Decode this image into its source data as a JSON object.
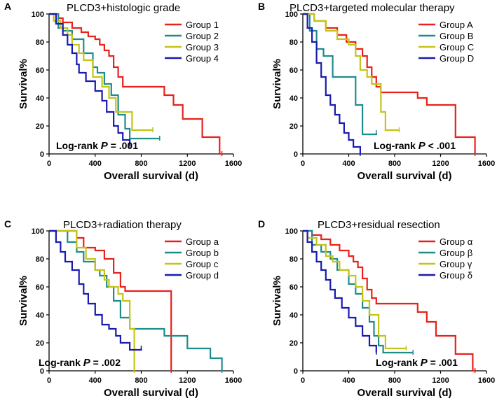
{
  "chart_data": [
    {
      "panel_label": "A",
      "type": "line",
      "title": "PLCD3+histologic grade",
      "xlabel": "Overall survival (d)",
      "ylabel": "Survival%",
      "xlim": [
        0,
        1600
      ],
      "ylim": [
        0,
        100
      ],
      "xticks": [
        0,
        400,
        800,
        1200,
        1600
      ],
      "yticks": [
        0,
        20,
        40,
        60,
        80,
        100
      ],
      "pvalue": {
        "prefix": "Log-rank ",
        "p": "P",
        "rest": " = .001"
      },
      "legend_position": "top-right",
      "series": [
        {
          "name": "Group 1",
          "color": "#e8211c",
          "x": [
            0,
            80,
            120,
            200,
            280,
            340,
            400,
            440,
            480,
            520,
            560,
            600,
            640,
            1000,
            1080,
            1160,
            1330,
            1480,
            1500
          ],
          "y": [
            100,
            97,
            94,
            90,
            87,
            84,
            82,
            78,
            74,
            70,
            62,
            55,
            48,
            42,
            35,
            25,
            12,
            0,
            0
          ]
        },
        {
          "name": "Group 2",
          "color": "#1f8c8c",
          "x": [
            0,
            80,
            120,
            200,
            300,
            380,
            420,
            480,
            540,
            600,
            660,
            700,
            960
          ],
          "y": [
            100,
            90,
            88,
            82,
            72,
            62,
            58,
            50,
            42,
            28,
            18,
            11,
            11
          ]
        },
        {
          "name": "Group 3",
          "color": "#c4c418",
          "x": [
            0,
            40,
            100,
            160,
            200,
            260,
            300,
            380,
            460,
            520,
            580,
            720,
            900
          ],
          "y": [
            100,
            95,
            90,
            85,
            78,
            72,
            67,
            55,
            48,
            40,
            30,
            17,
            17
          ]
        },
        {
          "name": "Group 4",
          "color": "#1a1ab0",
          "x": [
            0,
            60,
            120,
            160,
            200,
            240,
            260,
            320,
            400,
            460,
            500,
            560,
            600,
            640,
            700
          ],
          "y": [
            100,
            93,
            85,
            78,
            72,
            64,
            58,
            52,
            45,
            38,
            30,
            20,
            15,
            10,
            6
          ]
        }
      ]
    },
    {
      "panel_label": "B",
      "type": "line",
      "title": "PLCD3+targeted molecular therapy",
      "xlabel": "Overall survival (d)",
      "ylabel": "Survival%",
      "xlim": [
        0,
        1600
      ],
      "ylim": [
        0,
        100
      ],
      "xticks": [
        0,
        400,
        800,
        1200,
        1600
      ],
      "yticks": [
        0,
        20,
        40,
        60,
        80,
        100
      ],
      "pvalue": {
        "prefix": "Log-rank ",
        "p": "P",
        "rest": " < .001"
      },
      "legend_position": "top-right",
      "series": [
        {
          "name": "Group A",
          "color": "#e8211c",
          "x": [
            0,
            100,
            200,
            300,
            380,
            460,
            520,
            560,
            600,
            640,
            680,
            1000,
            1080,
            1330,
            1480,
            1500
          ],
          "y": [
            100,
            95,
            90,
            85,
            80,
            75,
            70,
            62,
            55,
            48,
            44,
            40,
            35,
            12,
            12,
            0
          ]
        },
        {
          "name": "Group B",
          "color": "#1f8c8c",
          "x": [
            0,
            60,
            120,
            180,
            260,
            460,
            520,
            560,
            640
          ],
          "y": [
            100,
            88,
            75,
            70,
            55,
            35,
            14,
            14,
            15
          ]
        },
        {
          "name": "Group C",
          "color": "#c4c418",
          "x": [
            0,
            100,
            200,
            300,
            400,
            460,
            500,
            560,
            600,
            680,
            720,
            840
          ],
          "y": [
            100,
            95,
            88,
            82,
            78,
            70,
            60,
            55,
            50,
            30,
            17,
            17
          ]
        },
        {
          "name": "Group D",
          "color": "#1a1ab0",
          "x": [
            0,
            40,
            80,
            120,
            160,
            200,
            240,
            280,
            320,
            360,
            400,
            440,
            500
          ],
          "y": [
            100,
            90,
            80,
            65,
            55,
            42,
            35,
            28,
            22,
            15,
            10,
            5,
            0
          ]
        }
      ]
    },
    {
      "panel_label": "C",
      "type": "line",
      "title": "PLCD3+radiation therapy",
      "xlabel": "Overall survival (d)",
      "ylabel": "Survival%",
      "xlim": [
        0,
        1600
      ],
      "ylim": [
        0,
        100
      ],
      "xticks": [
        0,
        400,
        800,
        1200,
        1600
      ],
      "yticks": [
        0,
        20,
        40,
        60,
        80,
        100
      ],
      "pvalue": {
        "prefix": "Log-rank ",
        "p": "P",
        "rest": " = .002"
      },
      "legend_position": "top-right",
      "series": [
        {
          "name": "Group a",
          "color": "#e8211c",
          "x": [
            0,
            240,
            300,
            400,
            480,
            560,
            620,
            660,
            1040,
            1060
          ],
          "y": [
            100,
            95,
            88,
            86,
            80,
            70,
            60,
            57,
            57,
            0
          ]
        },
        {
          "name": "Group b",
          "color": "#1f8c8c",
          "x": [
            0,
            160,
            240,
            300,
            400,
            440,
            500,
            560,
            620,
            700,
            1000,
            1200,
            1400,
            1500
          ],
          "y": [
            100,
            92,
            85,
            78,
            72,
            68,
            60,
            50,
            38,
            30,
            25,
            16,
            9,
            0
          ]
        },
        {
          "name": "Group c",
          "color": "#c4c418",
          "x": [
            0,
            240,
            320,
            400,
            480,
            520,
            600,
            640,
            700,
            740
          ],
          "y": [
            100,
            88,
            80,
            72,
            65,
            60,
            55,
            50,
            30,
            0
          ]
        },
        {
          "name": "Group d",
          "color": "#1a1ab0",
          "x": [
            0,
            60,
            100,
            140,
            200,
            260,
            300,
            340,
            400,
            460,
            520,
            580,
            620,
            700,
            800
          ],
          "y": [
            100,
            92,
            85,
            78,
            72,
            62,
            55,
            48,
            40,
            33,
            30,
            25,
            20,
            15,
            16
          ]
        }
      ]
    },
    {
      "panel_label": "D",
      "type": "line",
      "title": "PLCD3+residual resection",
      "xlabel": "Overall survival (d)",
      "ylabel": "Survival%",
      "xlim": [
        0,
        1600
      ],
      "ylim": [
        0,
        100
      ],
      "xticks": [
        0,
        400,
        800,
        1200,
        1600
      ],
      "yticks": [
        0,
        20,
        40,
        60,
        80,
        100
      ],
      "pvalue": {
        "prefix": "Log-rank ",
        "p": "P",
        "rest": " = .001"
      },
      "legend_position": "top-right",
      "series": [
        {
          "name": "Group α",
          "color": "#e8211c",
          "x": [
            0,
            80,
            160,
            240,
            320,
            400,
            440,
            480,
            520,
            560,
            600,
            640,
            1000,
            1080,
            1160,
            1330,
            1480,
            1500
          ],
          "y": [
            100,
            97,
            94,
            90,
            86,
            82,
            78,
            74,
            66,
            58,
            52,
            48,
            42,
            35,
            25,
            12,
            0,
            0
          ]
        },
        {
          "name": "Group β",
          "color": "#1f8c8c",
          "x": [
            0,
            80,
            160,
            240,
            300,
            400,
            460,
            520,
            580,
            620,
            660,
            700,
            960
          ],
          "y": [
            100,
            90,
            85,
            80,
            72,
            62,
            55,
            45,
            35,
            25,
            18,
            13,
            13
          ]
        },
        {
          "name": "Group γ",
          "color": "#c4c418",
          "x": [
            0,
            40,
            120,
            200,
            260,
            320,
            400,
            460,
            520,
            580,
            660,
            720,
            900
          ],
          "y": [
            100,
            95,
            90,
            82,
            78,
            72,
            68,
            60,
            50,
            40,
            25,
            16,
            16
          ]
        },
        {
          "name": "Group δ",
          "color": "#1a1ab0",
          "x": [
            0,
            40,
            80,
            120,
            160,
            200,
            240,
            280,
            340,
            400,
            460,
            520,
            580,
            640
          ],
          "y": [
            100,
            92,
            85,
            78,
            72,
            65,
            58,
            52,
            45,
            38,
            32,
            25,
            18,
            13
          ]
        }
      ]
    }
  ]
}
